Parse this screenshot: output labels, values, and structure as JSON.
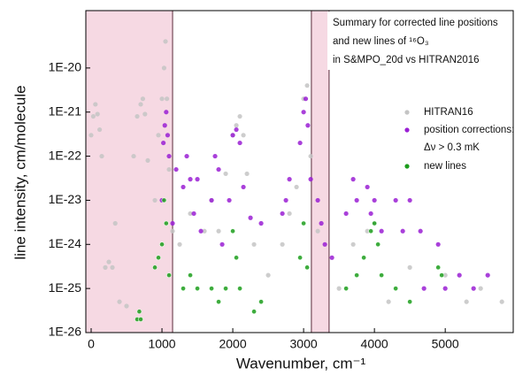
{
  "chart_data": {
    "type": "scatter",
    "xlabel": "Wavenumber, cm⁻¹",
    "ylabel": "line intensity, cm/molecule",
    "annotation": [
      "Summary for corrected line positions",
      "and new lines of ¹⁶O₃",
      "in S&MPO_20d vs HITRAN2016"
    ],
    "log_y": true,
    "xlim": [
      -75,
      5960
    ],
    "ylim": [
      1e-26,
      2e-19
    ],
    "xticks": [
      0,
      1000,
      2000,
      3000,
      4000,
      5000
    ],
    "yticks": [
      {
        "value": 1e-26,
        "label": "1E-26"
      },
      {
        "value": 1e-25,
        "label": "1E-25"
      },
      {
        "value": 1e-24,
        "label": "1E-24"
      },
      {
        "value": 1e-23,
        "label": "1E-23"
      },
      {
        "value": 1e-22,
        "label": "1E-22"
      },
      {
        "value": 1e-21,
        "label": "1E-21"
      },
      {
        "value": 1e-20,
        "label": "1E-20"
      }
    ],
    "shaded_ranges": [
      [
        -75,
        1150
      ],
      [
        3110,
        3360
      ]
    ],
    "shade_color": "#f6d9e3",
    "legend": "upper right",
    "series": [
      {
        "name": "HITRAN16",
        "color": "#c4c4c4",
        "x": [
          0,
          30,
          60,
          90,
          120,
          150,
          200,
          250,
          300,
          340,
          400,
          500,
          600,
          650,
          700,
          730,
          760,
          800,
          900,
          950,
          1000,
          1030,
          1050,
          1070,
          1100,
          1150,
          1250,
          1400,
          1600,
          1700,
          1800,
          1900,
          2000,
          2050,
          2100,
          2150,
          2200,
          2300,
          2500,
          2700,
          2800,
          2900,
          3000,
          3050,
          3100,
          3200,
          3500,
          3700,
          3900,
          4000,
          4200,
          4500,
          5000,
          5300,
          5500,
          5800
        ],
        "values": [
          3e-22,
          8e-22,
          1.5e-21,
          9e-22,
          4e-22,
          1e-22,
          3e-25,
          4e-25,
          3e-25,
          3e-24,
          5e-26,
          4e-26,
          1e-22,
          8e-22,
          1.5e-21,
          2e-21,
          9e-22,
          8e-23,
          1e-23,
          3e-22,
          2e-21,
          1e-20,
          4e-20,
          2e-21,
          5e-23,
          2e-24,
          1e-24,
          5e-24,
          2e-24,
          1e-23,
          2e-24,
          4e-23,
          3e-22,
          5e-22,
          8e-22,
          3e-22,
          4e-23,
          1e-24,
          2e-25,
          1e-24,
          5e-24,
          2e-23,
          2e-21,
          4e-21,
          1e-22,
          2e-24,
          1e-25,
          1e-24,
          2e-24,
          3e-24,
          5e-26,
          3e-25,
          2e-25,
          5e-26,
          1e-25,
          5e-26
        ]
      },
      {
        "name": "position corrections:",
        "note": "Δν > 0.3 mK",
        "color": "#9a1fd4",
        "x": [
          1000,
          1020,
          1040,
          1060,
          1080,
          1100,
          1150,
          1200,
          1300,
          1350,
          1400,
          1450,
          1500,
          1550,
          1700,
          1750,
          1800,
          1850,
          1950,
          2000,
          2050,
          2100,
          2150,
          2250,
          2400,
          2700,
          2750,
          2800,
          2950,
          3000,
          3030,
          3060,
          3100,
          3200,
          3250,
          3300,
          3400,
          3600,
          3700,
          3750,
          3900,
          3950,
          4000,
          4100,
          4300,
          4400,
          4500,
          4650,
          4700,
          4900,
          5000,
          5200,
          5400,
          5600
        ],
        "values": [
          1e-23,
          2e-22,
          5e-22,
          1e-21,
          3e-22,
          1e-22,
          3e-24,
          5e-23,
          2e-23,
          1e-22,
          3e-23,
          5e-24,
          3e-23,
          2e-24,
          1e-23,
          1e-22,
          5e-23,
          1e-24,
          1e-23,
          3e-22,
          4e-22,
          2e-22,
          2e-23,
          4e-24,
          3e-24,
          5e-24,
          1e-23,
          3e-23,
          2e-22,
          1e-21,
          2e-21,
          5e-22,
          3e-23,
          1e-23,
          3e-24,
          1e-24,
          5e-25,
          5e-24,
          3e-23,
          1e-23,
          2e-23,
          5e-24,
          1e-23,
          2e-24,
          1e-23,
          2e-24,
          1e-23,
          2e-24,
          1e-25,
          1e-24,
          1e-25,
          2e-25,
          1e-25,
          2e-25
        ]
      },
      {
        "name": "new lines",
        "color": "#1c9c1c",
        "x": [
          650,
          680,
          700,
          900,
          950,
          1000,
          1030,
          1060,
          1100,
          1300,
          1400,
          1500,
          1700,
          1800,
          1900,
          2000,
          2050,
          2100,
          2300,
          2400,
          2950,
          3000,
          3050,
          3600,
          3750,
          3850,
          3950,
          4000,
          4050,
          4100,
          4300,
          4500,
          4900,
          4950
        ],
        "values": [
          2e-26,
          3e-26,
          2e-26,
          3e-25,
          5e-25,
          1e-24,
          1e-23,
          3e-24,
          2e-25,
          1e-25,
          2e-25,
          1e-25,
          1e-25,
          5e-26,
          1e-25,
          2e-24,
          5e-25,
          1e-25,
          3e-26,
          5e-26,
          5e-25,
          3e-24,
          3e-25,
          1e-25,
          2e-25,
          5e-25,
          2e-24,
          3e-24,
          1e-24,
          2e-25,
          1e-25,
          5e-26,
          3e-25,
          2e-25
        ]
      }
    ]
  }
}
